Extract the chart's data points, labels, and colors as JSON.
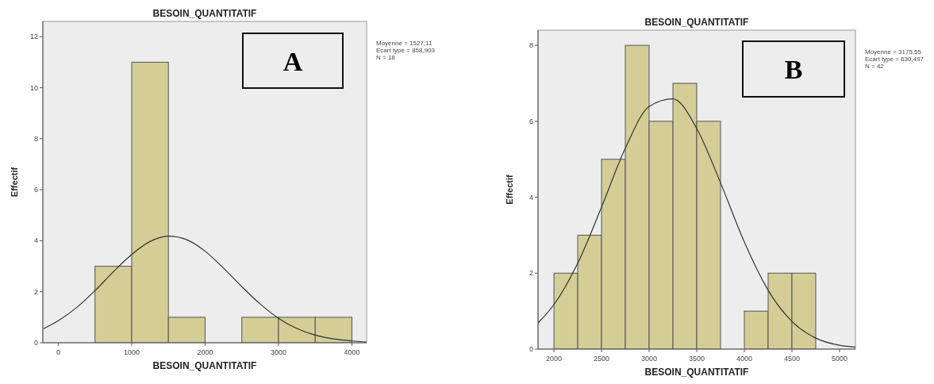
{
  "chart_data": [
    {
      "type": "histogram",
      "title": "BESOIN_QUANTITATIF",
      "xlabel": "BESOIN_QUANTITATIF",
      "ylabel": "Effectif",
      "xlim": [
        -210,
        4200
      ],
      "ylim": [
        0,
        12.6
      ],
      "xticks": [
        0,
        1000,
        2000,
        3000,
        4000
      ],
      "yticks": [
        0,
        2,
        4,
        6,
        8,
        10,
        12
      ],
      "annotations": [
        "A",
        "Moyenne = 1527,11",
        "Ecart type = 858,903",
        "N = 18"
      ],
      "series": [
        {
          "color": "#d4cd96",
          "bins": [
            500,
            1000,
            1500,
            2000,
            2500,
            3000,
            3500,
            4000
          ],
          "values": [
            3,
            11,
            1,
            0,
            1,
            1,
            1
          ]
        },
        {
          "type": "line",
          "color": "#333333",
          "x": [
            -200,
            0,
            250,
            500,
            750,
            1000,
            1250,
            1500,
            1750,
            2000,
            2250,
            2500,
            2750,
            3000,
            3250,
            3500,
            3750,
            4000,
            4200
          ],
          "values": [
            0.55,
            0.86,
            1.38,
            2.04,
            2.78,
            3.46,
            3.97,
            4.18,
            4.04,
            3.59,
            2.93,
            2.2,
            1.52,
            0.96,
            0.56,
            0.3,
            0.15,
            0.07,
            0.03
          ]
        }
      ]
    },
    {
      "type": "histogram",
      "title": "BESOIN_QUANTITATIF",
      "xlabel": "BESOIN_QUANTITATIF",
      "ylabel": "Effectif",
      "xlim": [
        1833,
        5167
      ],
      "ylim": [
        0,
        8.4
      ],
      "xticks": [
        2000,
        2500,
        3000,
        3500,
        4000,
        4500,
        5000
      ],
      "yticks": [
        0,
        2,
        4,
        6,
        8
      ],
      "annotations": [
        "B",
        "Moyenne = 3175,55",
        "Ecart type = 630,497",
        "N = 42"
      ],
      "series": [
        {
          "color": "#d4cd96",
          "bins": [
            2000,
            2250,
            2500,
            2750,
            3000,
            3250,
            3500,
            3750,
            4000,
            4250,
            4500,
            4750
          ],
          "values": [
            2,
            3,
            5,
            8,
            6,
            7,
            6,
            0,
            1,
            2,
            2
          ]
        },
        {
          "type": "line",
          "color": "#333333",
          "x": [
            1833,
            2000,
            2250,
            2500,
            2750,
            3000,
            3250,
            3500,
            3750,
            4000,
            4250,
            4500,
            4750,
            5000,
            5167
          ],
          "values": [
            0.69,
            1.17,
            2.26,
            3.74,
            5.29,
            6.39,
            6.59,
            5.81,
            4.38,
            2.82,
            1.55,
            0.73,
            0.29,
            0.1,
            0.05
          ]
        }
      ]
    }
  ]
}
